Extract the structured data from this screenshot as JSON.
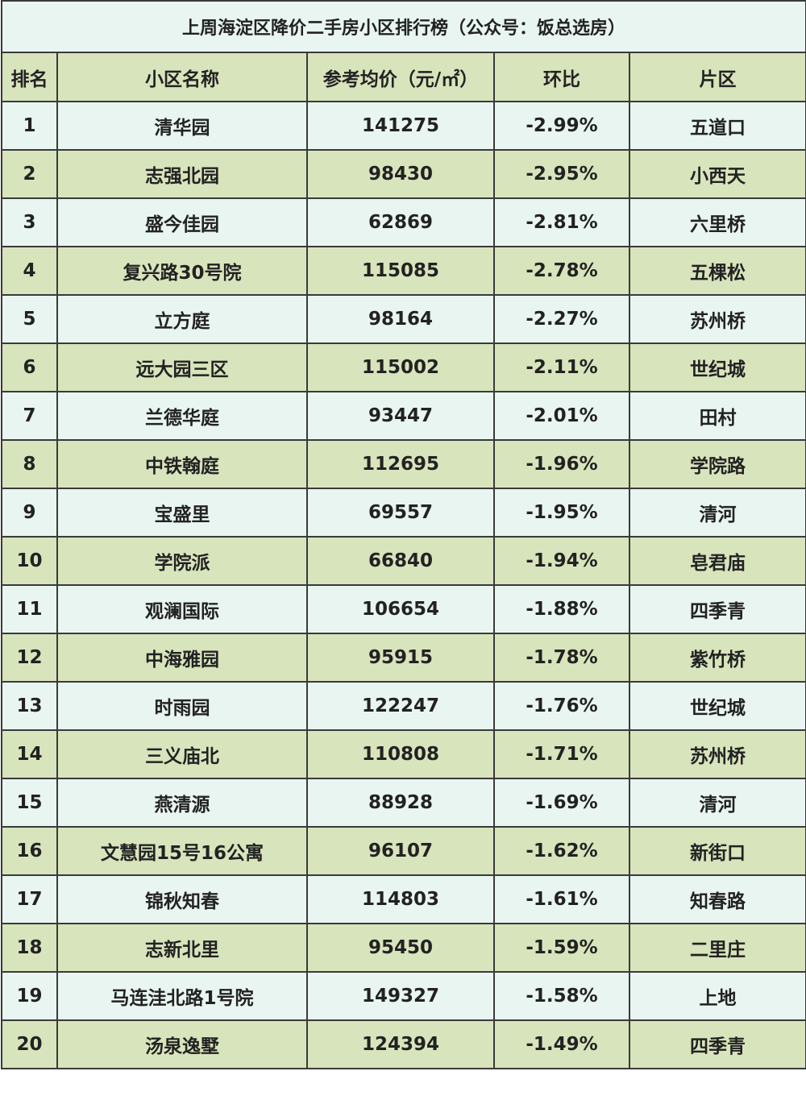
{
  "title": "上周海淀区降价二手房小区排行榜（公众号：饭总选房）",
  "table": {
    "headers": [
      "排名",
      "小区名称",
      "参考均价（元/㎡）",
      "环比",
      "片区"
    ],
    "rows": [
      [
        1,
        "清华园",
        141275,
        "-2.99%",
        "五道口"
      ],
      [
        2,
        "志强北园",
        98430,
        "-2.95%",
        "小西天"
      ],
      [
        3,
        "盛今佳园",
        62869,
        "-2.81%",
        "六里桥"
      ],
      [
        4,
        "复兴路30号院",
        115085,
        "-2.78%",
        "五棵松"
      ],
      [
        5,
        "立方庭",
        98164,
        "-2.27%",
        "苏州桥"
      ],
      [
        6,
        "远大园三区",
        115002,
        "-2.11%",
        "世纪城"
      ],
      [
        7,
        "兰德华庭",
        93447,
        "-2.01%",
        "田村"
      ],
      [
        8,
        "中铁翰庭",
        112695,
        "-1.96%",
        "学院路"
      ],
      [
        9,
        "宝盛里",
        69557,
        "-1.95%",
        "清河"
      ],
      [
        10,
        "学院派",
        66840,
        "-1.94%",
        "皂君庙"
      ],
      [
        11,
        "观澜国际",
        106654,
        "-1.88%",
        "四季青"
      ],
      [
        12,
        "中海雅园",
        95915,
        "-1.78%",
        "紫竹桥"
      ],
      [
        13,
        "时雨园",
        122247,
        "-1.76%",
        "世纪城"
      ],
      [
        14,
        "三义庙北",
        110808,
        "-1.71%",
        "苏州桥"
      ],
      [
        15,
        "燕清源",
        88928,
        "-1.69%",
        "清河"
      ],
      [
        16,
        "文慧园15号16公寓",
        96107,
        "-1.62%",
        "新街口"
      ],
      [
        17,
        "锦秋知春",
        114803,
        "-1.61%",
        "知春路"
      ],
      [
        18,
        "志新北里",
        95450,
        "-1.59%",
        "二里庄"
      ],
      [
        19,
        "马连洼北路1号院",
        149327,
        "-1.58%",
        "上地"
      ],
      [
        20,
        "汤泉逸墅",
        124394,
        "-1.49%",
        "四季青"
      ]
    ]
  }
}
